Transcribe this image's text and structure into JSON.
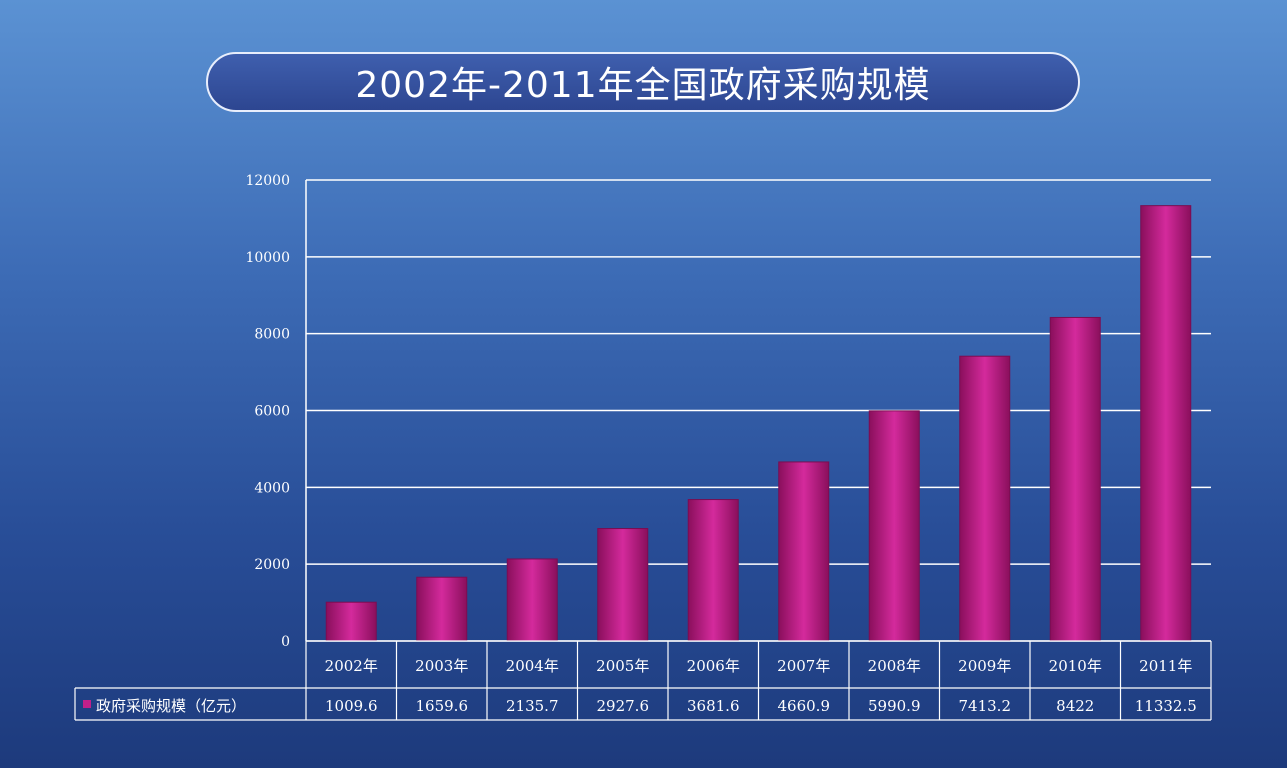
{
  "chart_data": {
    "type": "bar",
    "title": "2002年-2011年全国政府采购规模",
    "categories": [
      "2002年",
      "2003年",
      "2004年",
      "2005年",
      "2006年",
      "2007年",
      "2008年",
      "2009年",
      "2010年",
      "2011年"
    ],
    "series": [
      {
        "name": "政府采购规模（亿元）",
        "values": [
          1009.6,
          1659.6,
          2135.7,
          2927.6,
          3681.6,
          4660.9,
          5990.9,
          7413.2,
          8422,
          11332.5
        ],
        "value_labels": [
          "1009.6",
          "1659.6",
          "2135.7",
          "2927.6",
          "3681.6",
          "4660.9",
          "5990.9",
          "7413.2",
          "8422",
          "11332.5"
        ]
      }
    ],
    "yticks": [
      "0",
      "2000",
      "4000",
      "6000",
      "8000",
      "10000",
      "12000"
    ],
    "ylim": [
      0,
      12000
    ],
    "grid": true,
    "legend": "data-table",
    "colors": {
      "bar": "#c0208a",
      "bar_edge": "#7a0d52",
      "grid": "#ffffff",
      "text": "#ffffff"
    }
  }
}
